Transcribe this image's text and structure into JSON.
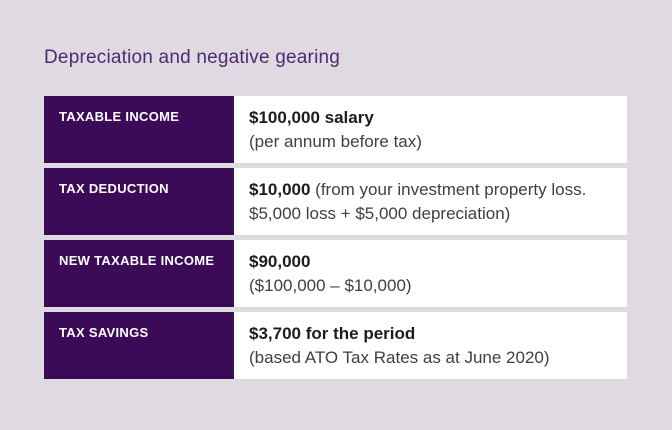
{
  "title": "Depreciation and negative gearing",
  "colors": {
    "background": "#dfdae1",
    "title_purple": "#4e2a72",
    "cell_purple": "#3c0b57",
    "cell_white": "#ffffff",
    "text_bold": "#1d1d1b",
    "text_regular": "#3f3f3e"
  },
  "rows": [
    {
      "label": "TAXABLE INCOME",
      "value_bold": "$100,000 salary",
      "value_rest": "",
      "value_note": "(per annum before tax)"
    },
    {
      "label": "TAX DEDUCTION",
      "value_bold": "$10,000",
      "value_rest": " (from your investment property loss.",
      "value_note": "$5,000 loss + $5,000 depreciation)"
    },
    {
      "label": "NEW TAXABLE INCOME",
      "value_bold": "$90,000",
      "value_rest": "",
      "value_note": "($100,000 – $10,000)"
    },
    {
      "label": "TAX SAVINGS",
      "value_bold": "$3,700 for the period",
      "value_rest": "",
      "value_note": "(based ATO Tax Rates as at June 2020)"
    }
  ]
}
